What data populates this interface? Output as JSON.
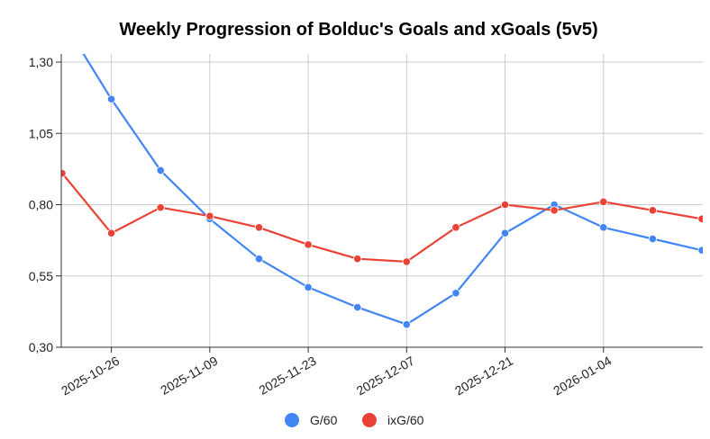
{
  "chart_data": {
    "type": "line",
    "title": "Weekly Progression of Bolduc's Goals and xGoals (5v5)",
    "xlabel": "",
    "ylabel": "",
    "x": [
      "2025-10-19",
      "2025-10-26",
      "2025-11-02",
      "2025-11-09",
      "2025-11-16",
      "2025-11-23",
      "2025-11-30",
      "2025-12-07",
      "2025-12-14",
      "2025-12-21",
      "2025-12-28",
      "2026-01-04",
      "2026-01-11",
      "2026-01-18"
    ],
    "x_tick_labels": [
      "2025-10-26",
      "2025-11-09",
      "2025-11-23",
      "2025-12-07",
      "2025-12-21",
      "2026-01-04"
    ],
    "x_tick_indices": [
      1,
      3,
      5,
      7,
      9,
      11
    ],
    "y_tick_labels": [
      "0,30",
      "0,55",
      "0,80",
      "1,05",
      "1,30"
    ],
    "ylim": [
      0.3,
      1.3
    ],
    "grid": true,
    "legend_position": "bottom",
    "series": [
      {
        "name": "G/60",
        "color": "#4285f4",
        "values": [
          1.45,
          1.17,
          0.92,
          0.75,
          0.61,
          0.51,
          0.44,
          0.38,
          0.49,
          0.7,
          0.8,
          0.72,
          0.68,
          0.64
        ]
      },
      {
        "name": "ixG/60",
        "color": "#ea4335",
        "values": [
          0.91,
          0.7,
          0.79,
          0.76,
          0.72,
          0.66,
          0.61,
          0.6,
          0.72,
          0.8,
          0.78,
          0.81,
          0.78,
          0.75
        ]
      }
    ]
  }
}
